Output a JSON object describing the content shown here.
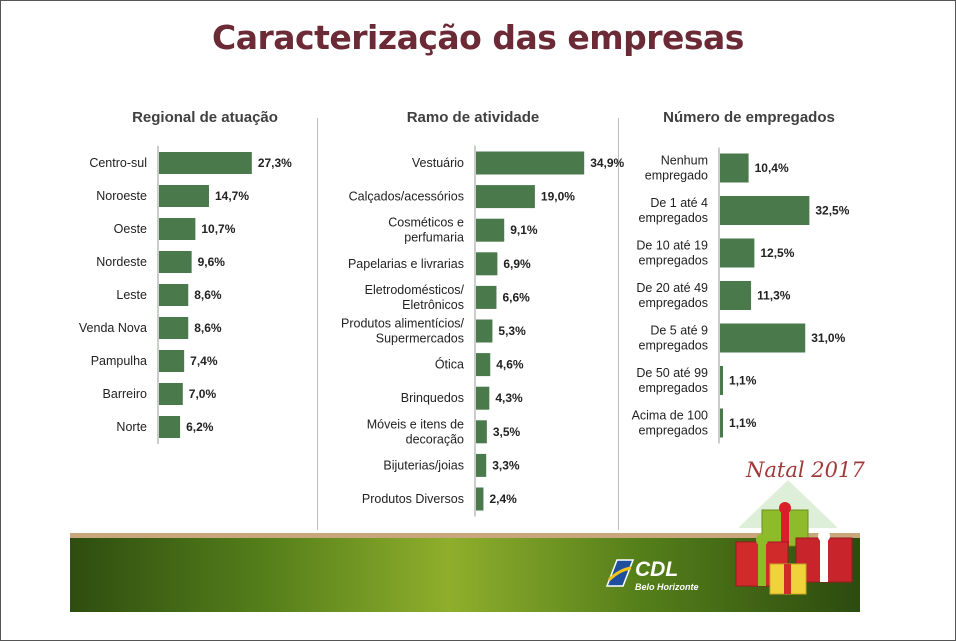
{
  "page": {
    "title": "Caracterização das empresas"
  },
  "chart_data": [
    {
      "type": "bar",
      "orientation": "horizontal",
      "title": "Regional de atuação",
      "categories": [
        [
          "Centro-sul"
        ],
        [
          "Noroeste"
        ],
        [
          "Oeste"
        ],
        [
          "Nordeste"
        ],
        [
          "Leste"
        ],
        [
          "Venda Nova"
        ],
        [
          "Pampulha"
        ],
        [
          "Barreiro"
        ],
        [
          "Norte"
        ]
      ],
      "values": [
        27.3,
        14.7,
        10.7,
        9.6,
        8.6,
        8.6,
        7.4,
        7.0,
        6.2
      ],
      "value_labels": [
        "27,3%",
        "14,7%",
        "10,7%",
        "9,6%",
        "8,6%",
        "8,6%",
        "7,4%",
        "7,0%",
        "6,2%"
      ],
      "unit": "%",
      "color": "#4a7a4c"
    },
    {
      "type": "bar",
      "orientation": "horizontal",
      "title": "Ramo de atividade",
      "categories": [
        [
          "Vestuário"
        ],
        [
          "Calçados/acessórios"
        ],
        [
          "Cosméticos e",
          "perfumaria"
        ],
        [
          "Papelarias e livrarias"
        ],
        [
          "Eletrodomésticos/",
          "Eletrônicos"
        ],
        [
          "Produtos alimentícios/",
          "Supermercados"
        ],
        [
          "Ótica"
        ],
        [
          "Brinquedos"
        ],
        [
          "Móveis e itens de",
          "decoração"
        ],
        [
          "Bijuterias/joias"
        ],
        [
          "Produtos Diversos"
        ]
      ],
      "values": [
        34.9,
        19.0,
        9.1,
        6.9,
        6.6,
        5.3,
        4.6,
        4.3,
        3.5,
        3.3,
        2.4
      ],
      "value_labels": [
        "34,9%",
        "19,0%",
        "9,1%",
        "6,9%",
        "6,6%",
        "5,3%",
        "4,6%",
        "4,3%",
        "3,5%",
        "3,3%",
        "2,4%"
      ],
      "unit": "%",
      "color": "#4a7a4c"
    },
    {
      "type": "bar",
      "orientation": "horizontal",
      "title": "Número de empregados",
      "categories": [
        [
          "Nenhum",
          "empregado"
        ],
        [
          "De 1 até 4",
          "empregados"
        ],
        [
          "De 10 até 19",
          "empregados"
        ],
        [
          "De 20 até 49",
          "empregados"
        ],
        [
          "De 5 até 9",
          "empregados"
        ],
        [
          "De 50 até 99",
          "empregados"
        ],
        [
          "Acima de 100",
          "empregados"
        ]
      ],
      "values": [
        10.4,
        32.5,
        12.5,
        11.3,
        31.0,
        1.1,
        1.1
      ],
      "value_labels": [
        "10,4%",
        "32,5%",
        "12,5%",
        "11,3%",
        "31,0%",
        "1,1%",
        "1,1%"
      ],
      "unit": "%",
      "color": "#4a7a4c"
    }
  ],
  "branding": {
    "logo_name": "CDL",
    "logo_sub": "Belo Horizonte",
    "seal": "Natal 2017"
  }
}
